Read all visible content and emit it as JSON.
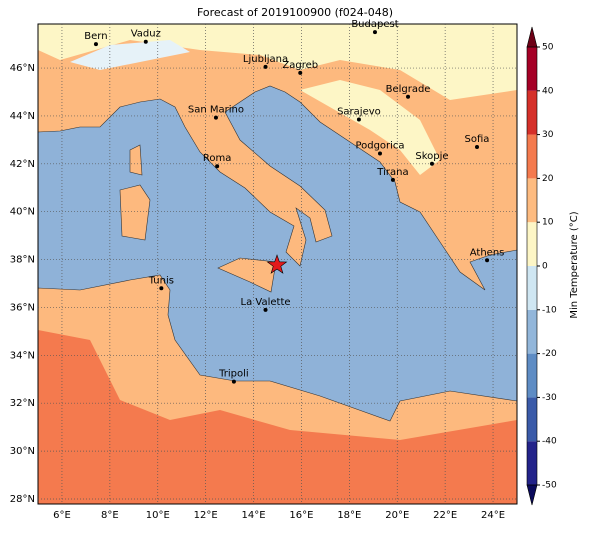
{
  "title": "Forecast of 2019100900 (f024-048)",
  "lonlim": [
    5,
    25
  ],
  "latlim": [
    27.79,
    47.84
  ],
  "lonticks": [
    {
      "value": 6,
      "label": "6°E"
    },
    {
      "value": 8,
      "label": "8°E"
    },
    {
      "value": 10,
      "label": "10°E"
    },
    {
      "value": 12,
      "label": "12°E"
    },
    {
      "value": 14,
      "label": "14°E"
    },
    {
      "value": 16,
      "label": "16°E"
    },
    {
      "value": 18,
      "label": "18°E"
    },
    {
      "value": 20,
      "label": "20°E"
    },
    {
      "value": 22,
      "label": "22°E"
    },
    {
      "value": 24,
      "label": "24°E"
    }
  ],
  "latticks": [
    {
      "value": 28,
      "label": "28°N"
    },
    {
      "value": 30,
      "label": "30°N"
    },
    {
      "value": 32,
      "label": "32°N"
    },
    {
      "value": 34,
      "label": "34°N"
    },
    {
      "value": 36,
      "label": "36°N"
    },
    {
      "value": 38,
      "label": "38°N"
    },
    {
      "value": 40,
      "label": "40°N"
    },
    {
      "value": 42,
      "label": "42°N"
    },
    {
      "value": 44,
      "label": "44°N"
    },
    {
      "value": 46,
      "label": "46°N"
    }
  ],
  "grid": true,
  "cities": [
    {
      "name": "Bern",
      "lon": 7.42,
      "lat": 47.0
    },
    {
      "name": "Vaduz",
      "lon": 9.5,
      "lat": 47.1
    },
    {
      "name": "Budapest",
      "lon": 19.07,
      "lat": 47.5
    },
    {
      "name": "Ljubljana",
      "lon": 14.5,
      "lat": 46.05
    },
    {
      "name": "Zagreb",
      "lon": 15.95,
      "lat": 45.8
    },
    {
      "name": "Belgrade",
      "lon": 20.45,
      "lat": 44.8
    },
    {
      "name": "San Marino",
      "lon": 12.43,
      "lat": 43.93
    },
    {
      "name": "Sarajevo",
      "lon": 18.4,
      "lat": 43.85
    },
    {
      "name": "Sofia",
      "lon": 23.33,
      "lat": 42.7
    },
    {
      "name": "Podgorica",
      "lon": 19.28,
      "lat": 42.43
    },
    {
      "name": "Skopje",
      "lon": 21.45,
      "lat": 42.0
    },
    {
      "name": "Roma",
      "lon": 12.48,
      "lat": 41.9
    },
    {
      "name": "Tirana",
      "lon": 19.82,
      "lat": 41.33
    },
    {
      "name": "Athens",
      "lon": 23.75,
      "lat": 37.97
    },
    {
      "name": "Tunis",
      "lon": 10.15,
      "lat": 36.8
    },
    {
      "name": "La Valette",
      "lon": 14.5,
      "lat": 35.9
    },
    {
      "name": "Tripoli",
      "lon": 13.18,
      "lat": 32.9
    }
  ],
  "marker": {
    "lon": 14.98,
    "lat": 37.77,
    "color": "#e31a1c"
  },
  "colorbar": {
    "label": "Min Temperature (°C)",
    "ticks": [
      -50,
      -40,
      -30,
      -20,
      -10,
      0,
      10,
      20,
      30,
      40,
      50
    ],
    "colors": [
      "#23238a",
      "#3a5aa8",
      "#5e8cc4",
      "#92b6da",
      "#cfe6f2",
      "#fdf6c6",
      "#fdbb80",
      "#f47a4e",
      "#d5302a",
      "#a50026"
    ],
    "under_color": "#0b0b5c",
    "over_color": "#6d0016"
  }
}
